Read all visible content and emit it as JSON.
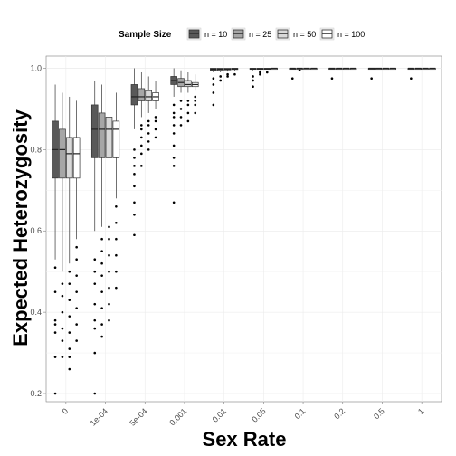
{
  "chart_data": {
    "type": "box",
    "xlabel": "Sex Rate",
    "ylabel": "Expected Heterozygosity",
    "ylim": [
      0.18,
      1.03
    ],
    "yticks": [
      0.2,
      0.4,
      0.6,
      0.8,
      1.0
    ],
    "ytick_labels": [
      "0.2",
      "0.4",
      "0.6",
      "0.8",
      "1.0"
    ],
    "categories": [
      "0",
      "1e-04",
      "5e-04",
      "0.001",
      "0.01",
      "0.05",
      "0.1",
      "0.2",
      "0.5",
      "1"
    ],
    "grid": true,
    "legend": {
      "title": "Sample Size",
      "position": "top",
      "items": [
        "n = 10",
        "n = 25",
        "n = 50",
        "n = 100"
      ]
    },
    "colors": [
      "#595959",
      "#a6a6a6",
      "#d9d9d9",
      "#ffffff"
    ],
    "series": [
      {
        "name": "n = 10",
        "boxes": [
          {
            "q1": 0.73,
            "median": 0.8,
            "q3": 0.87,
            "whisker_low": 0.53,
            "whisker_high": 0.96,
            "outliers": [
              0.2,
              0.29,
              0.35,
              0.37,
              0.38,
              0.45,
              0.51
            ]
          },
          {
            "q1": 0.78,
            "median": 0.85,
            "q3": 0.91,
            "whisker_low": 0.6,
            "whisker_high": 0.97,
            "outliers": [
              0.2,
              0.3,
              0.36,
              0.38,
              0.42,
              0.47,
              0.5,
              0.53
            ]
          },
          {
            "q1": 0.91,
            "median": 0.93,
            "q3": 0.96,
            "whisker_low": 0.85,
            "whisker_high": 1.0,
            "outliers": [
              0.59,
              0.64,
              0.67,
              0.71,
              0.74,
              0.76,
              0.78,
              0.8
            ]
          },
          {
            "q1": 0.96,
            "median": 0.97,
            "q3": 0.98,
            "whisker_low": 0.93,
            "whisker_high": 1.0,
            "outliers": [
              0.67,
              0.76,
              0.78,
              0.81,
              0.84,
              0.86,
              0.88,
              0.89,
              0.91
            ]
          },
          {
            "q1": 0.995,
            "median": 0.998,
            "q3": 1.0,
            "whisker_low": 0.99,
            "whisker_high": 1.0,
            "outliers": [
              0.91,
              0.94,
              0.96,
              0.975
            ]
          },
          {
            "q1": 0.998,
            "median": 0.999,
            "q3": 1.0,
            "whisker_low": 0.995,
            "whisker_high": 1.0,
            "outliers": [
              0.955,
              0.97,
              0.98
            ]
          },
          {
            "q1": 0.999,
            "median": 1.0,
            "q3": 1.0,
            "whisker_low": 0.997,
            "whisker_high": 1.0,
            "outliers": [
              0.975
            ]
          },
          {
            "q1": 0.999,
            "median": 1.0,
            "q3": 1.0,
            "whisker_low": 0.998,
            "whisker_high": 1.0,
            "outliers": [
              0.975
            ]
          },
          {
            "q1": 1.0,
            "median": 1.0,
            "q3": 1.0,
            "whisker_low": 0.999,
            "whisker_high": 1.0,
            "outliers": [
              0.975
            ]
          },
          {
            "q1": 1.0,
            "median": 1.0,
            "q3": 1.0,
            "whisker_low": 0.999,
            "whisker_high": 1.0,
            "outliers": [
              0.975
            ]
          }
        ]
      },
      {
        "name": "n = 25",
        "boxes": [
          {
            "q1": 0.73,
            "median": 0.8,
            "q3": 0.85,
            "whisker_low": 0.5,
            "whisker_high": 0.94,
            "outliers": [
              0.29,
              0.33,
              0.36,
              0.4,
              0.44,
              0.47
            ]
          },
          {
            "q1": 0.78,
            "median": 0.85,
            "q3": 0.89,
            "whisker_low": 0.61,
            "whisker_high": 0.96,
            "outliers": [
              0.34,
              0.37,
              0.41,
              0.45,
              0.49,
              0.52,
              0.55,
              0.58
            ]
          },
          {
            "q1": 0.92,
            "median": 0.93,
            "q3": 0.95,
            "whisker_low": 0.88,
            "whisker_high": 0.99,
            "outliers": [
              0.76,
              0.79,
              0.81,
              0.83,
              0.85,
              0.86
            ]
          },
          {
            "q1": 0.955,
            "median": 0.965,
            "q3": 0.975,
            "whisker_low": 0.94,
            "whisker_high": 0.995,
            "outliers": [
              0.86,
              0.88,
              0.9,
              0.92
            ]
          },
          {
            "q1": 0.995,
            "median": 0.998,
            "q3": 1.0,
            "whisker_low": 0.99,
            "whisker_high": 1.0,
            "outliers": [
              0.97,
              0.98
            ]
          },
          {
            "q1": 0.998,
            "median": 0.999,
            "q3": 1.0,
            "whisker_low": 0.996,
            "whisker_high": 1.0,
            "outliers": [
              0.985,
              0.99
            ]
          },
          {
            "q1": 0.999,
            "median": 1.0,
            "q3": 1.0,
            "whisker_low": 0.998,
            "whisker_high": 1.0,
            "outliers": [
              0.995
            ]
          },
          {
            "q1": 1.0,
            "median": 1.0,
            "q3": 1.0,
            "whisker_low": 0.999,
            "whisker_high": 1.0,
            "outliers": []
          },
          {
            "q1": 1.0,
            "median": 1.0,
            "q3": 1.0,
            "whisker_low": 0.999,
            "whisker_high": 1.0,
            "outliers": []
          },
          {
            "q1": 1.0,
            "median": 1.0,
            "q3": 1.0,
            "whisker_low": 0.999,
            "whisker_high": 1.0,
            "outliers": []
          }
        ]
      },
      {
        "name": "n = 50",
        "boxes": [
          {
            "q1": 0.73,
            "median": 0.79,
            "q3": 0.83,
            "whisker_low": 0.52,
            "whisker_high": 0.93,
            "outliers": [
              0.26,
              0.29,
              0.31,
              0.35,
              0.39,
              0.43,
              0.47,
              0.5
            ]
          },
          {
            "q1": 0.78,
            "median": 0.85,
            "q3": 0.88,
            "whisker_low": 0.64,
            "whisker_high": 0.95,
            "outliers": [
              0.38,
              0.42,
              0.46,
              0.5,
              0.54,
              0.58,
              0.61
            ]
          },
          {
            "q1": 0.92,
            "median": 0.93,
            "q3": 0.945,
            "whisker_low": 0.89,
            "whisker_high": 0.98,
            "outliers": [
              0.8,
              0.82,
              0.84,
              0.86,
              0.87
            ]
          },
          {
            "q1": 0.955,
            "median": 0.96,
            "q3": 0.97,
            "whisker_low": 0.94,
            "whisker_high": 0.99,
            "outliers": [
              0.87,
              0.89,
              0.91,
              0.92
            ]
          },
          {
            "q1": 0.996,
            "median": 0.998,
            "q3": 1.0,
            "whisker_low": 0.992,
            "whisker_high": 1.0,
            "outliers": [
              0.98,
              0.985
            ]
          },
          {
            "q1": 0.998,
            "median": 0.999,
            "q3": 1.0,
            "whisker_low": 0.997,
            "whisker_high": 1.0,
            "outliers": [
              0.99
            ]
          },
          {
            "q1": 1.0,
            "median": 1.0,
            "q3": 1.0,
            "whisker_low": 0.999,
            "whisker_high": 1.0,
            "outliers": []
          },
          {
            "q1": 1.0,
            "median": 1.0,
            "q3": 1.0,
            "whisker_low": 0.999,
            "whisker_high": 1.0,
            "outliers": []
          },
          {
            "q1": 1.0,
            "median": 1.0,
            "q3": 1.0,
            "whisker_low": 0.999,
            "whisker_high": 1.0,
            "outliers": []
          },
          {
            "q1": 1.0,
            "median": 1.0,
            "q3": 1.0,
            "whisker_low": 0.999,
            "whisker_high": 1.0,
            "outliers": []
          }
        ]
      },
      {
        "name": "n = 100",
        "boxes": [
          {
            "q1": 0.73,
            "median": 0.79,
            "q3": 0.83,
            "whisker_low": 0.58,
            "whisker_high": 0.92,
            "outliers": [
              0.33,
              0.37,
              0.41,
              0.45,
              0.49,
              0.53,
              0.56
            ]
          },
          {
            "q1": 0.78,
            "median": 0.85,
            "q3": 0.87,
            "whisker_low": 0.68,
            "whisker_high": 0.94,
            "outliers": [
              0.46,
              0.5,
              0.54,
              0.58,
              0.62,
              0.66
            ]
          },
          {
            "q1": 0.92,
            "median": 0.93,
            "q3": 0.94,
            "whisker_low": 0.9,
            "whisker_high": 0.97,
            "outliers": [
              0.83,
              0.85,
              0.87,
              0.88
            ]
          },
          {
            "q1": 0.955,
            "median": 0.96,
            "q3": 0.965,
            "whisker_low": 0.945,
            "whisker_high": 0.985,
            "outliers": [
              0.89,
              0.91,
              0.92,
              0.93
            ]
          },
          {
            "q1": 0.997,
            "median": 0.999,
            "q3": 1.0,
            "whisker_low": 0.994,
            "whisker_high": 1.0,
            "outliers": [
              0.985
            ]
          },
          {
            "q1": 0.999,
            "median": 1.0,
            "q3": 1.0,
            "whisker_low": 0.998,
            "whisker_high": 1.0,
            "outliers": []
          },
          {
            "q1": 1.0,
            "median": 1.0,
            "q3": 1.0,
            "whisker_low": 0.999,
            "whisker_high": 1.0,
            "outliers": []
          },
          {
            "q1": 1.0,
            "median": 1.0,
            "q3": 1.0,
            "whisker_low": 0.999,
            "whisker_high": 1.0,
            "outliers": []
          },
          {
            "q1": 1.0,
            "median": 1.0,
            "q3": 1.0,
            "whisker_low": 0.999,
            "whisker_high": 1.0,
            "outliers": []
          },
          {
            "q1": 1.0,
            "median": 1.0,
            "q3": 1.0,
            "whisker_low": 0.999,
            "whisker_high": 1.0,
            "outliers": []
          }
        ]
      }
    ]
  }
}
